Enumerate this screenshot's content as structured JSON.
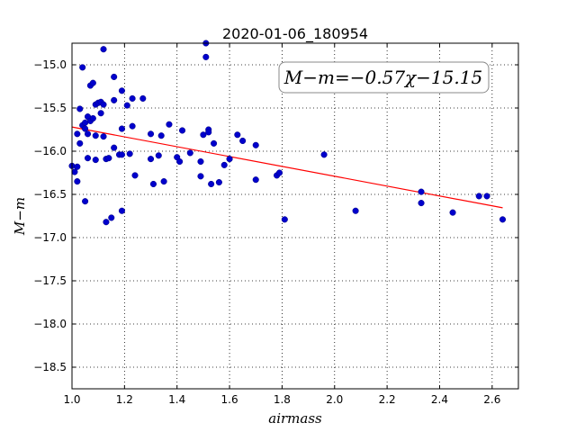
{
  "chart_data": {
    "type": "scatter",
    "title": "2020-01-06_180954",
    "xlabel": "airmass",
    "ylabel": "M−m",
    "xlim": [
      1.0,
      2.7
    ],
    "ylim": [
      -18.75,
      -14.75
    ],
    "x_ticks": [
      "1.0",
      "1.2",
      "1.4",
      "1.6",
      "1.8",
      "2.0",
      "2.2",
      "2.4",
      "2.6"
    ],
    "y_ticks": [
      "−15.0",
      "−15.5",
      "−16.0",
      "−16.5",
      "−17.0",
      "−17.5",
      "−18.0",
      "−18.5"
    ],
    "grid": true,
    "annotation": "M−m=−0.57χ−15.15",
    "fit_line": {
      "slope": -0.57,
      "intercept": -15.15,
      "x_range": [
        1.0,
        2.64
      ],
      "color": "#ff0000"
    },
    "point_color": "#0000cc",
    "points": [
      [
        1.0,
        -16.17
      ],
      [
        1.01,
        -16.24
      ],
      [
        1.02,
        -15.8
      ],
      [
        1.02,
        -16.18
      ],
      [
        1.02,
        -16.35
      ],
      [
        1.03,
        -15.91
      ],
      [
        1.03,
        -15.51
      ],
      [
        1.04,
        -15.03
      ],
      [
        1.04,
        -15.7
      ],
      [
        1.05,
        -15.67
      ],
      [
        1.05,
        -15.74
      ],
      [
        1.05,
        -16.58
      ],
      [
        1.06,
        -15.6
      ],
      [
        1.06,
        -15.8
      ],
      [
        1.06,
        -16.08
      ],
      [
        1.07,
        -15.65
      ],
      [
        1.07,
        -15.24
      ],
      [
        1.08,
        -15.21
      ],
      [
        1.08,
        -15.62
      ],
      [
        1.09,
        -15.46
      ],
      [
        1.09,
        -16.1
      ],
      [
        1.09,
        -15.82
      ],
      [
        1.1,
        -15.44
      ],
      [
        1.11,
        -15.43
      ],
      [
        1.11,
        -15.56
      ],
      [
        1.12,
        -15.46
      ],
      [
        1.12,
        -15.83
      ],
      [
        1.12,
        -14.82
      ],
      [
        1.13,
        -16.09
      ],
      [
        1.13,
        -16.82
      ],
      [
        1.14,
        -16.08
      ],
      [
        1.15,
        -16.77
      ],
      [
        1.16,
        -15.96
      ],
      [
        1.16,
        -15.14
      ],
      [
        1.16,
        -15.41
      ],
      [
        1.18,
        -16.04
      ],
      [
        1.19,
        -16.04
      ],
      [
        1.19,
        -15.3
      ],
      [
        1.19,
        -15.74
      ],
      [
        1.19,
        -16.69
      ],
      [
        1.21,
        -15.47
      ],
      [
        1.22,
        -16.03
      ],
      [
        1.23,
        -15.39
      ],
      [
        1.23,
        -15.71
      ],
      [
        1.24,
        -16.28
      ],
      [
        1.27,
        -15.39
      ],
      [
        1.3,
        -15.8
      ],
      [
        1.3,
        -16.09
      ],
      [
        1.31,
        -16.38
      ],
      [
        1.33,
        -16.05
      ],
      [
        1.34,
        -15.82
      ],
      [
        1.35,
        -16.35
      ],
      [
        1.37,
        -15.69
      ],
      [
        1.4,
        -16.07
      ],
      [
        1.41,
        -16.12
      ],
      [
        1.42,
        -15.76
      ],
      [
        1.45,
        -16.02
      ],
      [
        1.49,
        -16.12
      ],
      [
        1.49,
        -16.29
      ],
      [
        1.5,
        -15.81
      ],
      [
        1.51,
        -14.75
      ],
      [
        1.51,
        -14.91
      ],
      [
        1.52,
        -15.75
      ],
      [
        1.52,
        -15.78
      ],
      [
        1.53,
        -16.38
      ],
      [
        1.54,
        -15.91
      ],
      [
        1.56,
        -16.36
      ],
      [
        1.58,
        -16.16
      ],
      [
        1.6,
        -16.09
      ],
      [
        1.63,
        -15.81
      ],
      [
        1.65,
        -15.88
      ],
      [
        1.7,
        -16.33
      ],
      [
        1.7,
        -15.93
      ],
      [
        1.78,
        -16.28
      ],
      [
        1.79,
        -16.25
      ],
      [
        1.81,
        -16.79
      ],
      [
        1.96,
        -16.04
      ],
      [
        2.08,
        -16.69
      ],
      [
        2.33,
        -16.47
      ],
      [
        2.33,
        -16.6
      ],
      [
        2.45,
        -16.71
      ],
      [
        2.55,
        -16.52
      ],
      [
        2.58,
        -16.52
      ],
      [
        2.64,
        -16.79
      ]
    ]
  }
}
